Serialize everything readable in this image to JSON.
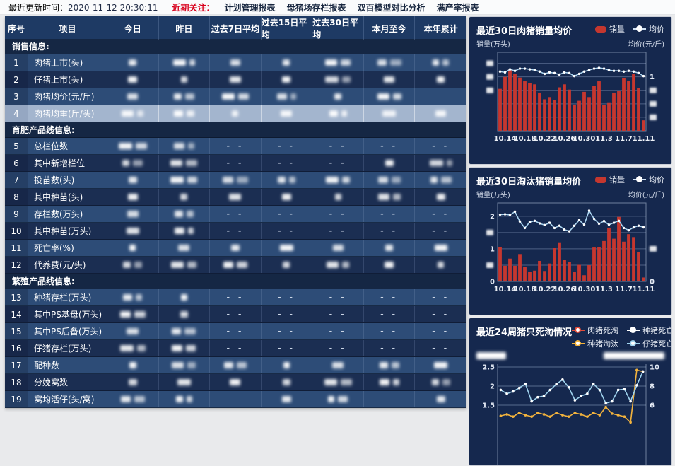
{
  "topbar": {
    "update_label": "最近更新时间：",
    "update_time": "2020-11-12 20:30:11",
    "focus_label": "近期关注：",
    "links": [
      "计划管理报表",
      "母猪场存栏报表",
      "双百模型对比分析",
      "满产率报表"
    ]
  },
  "colors": {
    "accent_red": "#d8001c",
    "bar": "#c5372f",
    "price_line": "#a9d3ef",
    "marker": "#ffffff",
    "panel_bg": "#15284e",
    "header_bg": "#1e3a64",
    "row_odd": "#2d4c77",
    "row_even": "#1b2e52",
    "row_selected": "#a3b5ce",
    "series_yellow": "#f2b33d",
    "series_blue": "#9fd3ee",
    "series_red": "#e04b3a",
    "series_white": "#ffffff"
  },
  "table": {
    "headers": [
      "序号",
      "项目",
      "今日",
      "昨日",
      "过去7日平均",
      "过去15日平均",
      "过去30日平均",
      "本月至今",
      "本年累计"
    ],
    "selected_row_no": "4",
    "sections": [
      {
        "title": "销售信息:",
        "rows": [
          {
            "no": "1",
            "name": "肉猪上市(头)",
            "cells": [
              "b",
              "bb",
              "b",
              "b",
              "bb",
              "bb",
              "bb"
            ]
          },
          {
            "no": "2",
            "name": "仔猪上市(头)",
            "cells": [
              "b",
              "b",
              "b",
              "b",
              "bb",
              "b",
              "b"
            ]
          },
          {
            "no": "3",
            "name": "肉猪均价(元/斤)",
            "cells": [
              "b",
              "bb",
              "bb",
              "bb",
              "b",
              "bb",
              ""
            ]
          },
          {
            "no": "4",
            "name": "肉猪均重(斤/头)",
            "cells": [
              "bb",
              "bb",
              "b",
              "b",
              "bb",
              "b",
              "b"
            ]
          }
        ]
      },
      {
        "title": "育肥产品线信息:",
        "rows": [
          {
            "no": "5",
            "name": "总栏位数",
            "cells": [
              "bb",
              "bb",
              "--",
              "--",
              "--",
              "--",
              "--"
            ]
          },
          {
            "no": "6",
            "name": "其中新增栏位",
            "cells": [
              "bb",
              "bb",
              "--",
              "--",
              "--",
              "b",
              "bb"
            ]
          },
          {
            "no": "7",
            "name": "投苗数(头)",
            "cells": [
              "b",
              "bb",
              "bb",
              "bb",
              "bb",
              "bb",
              "bb"
            ]
          },
          {
            "no": "8",
            "name": "其中种苗(头)",
            "cells": [
              "b",
              "b",
              "b",
              "b",
              "b",
              "bb",
              "b"
            ]
          },
          {
            "no": "9",
            "name": "存栏数(万头)",
            "cells": [
              "b",
              "bb",
              "--",
              "--",
              "--",
              "--",
              "--"
            ]
          },
          {
            "no": "10",
            "name": "其中种苗(万头)",
            "cells": [
              "b",
              "bb",
              "--",
              "--",
              "--",
              "--",
              "--"
            ]
          },
          {
            "no": "11",
            "name": "死亡率(%)",
            "cells": [
              "b",
              "b",
              "b",
              "b",
              "b",
              "b",
              "b"
            ]
          },
          {
            "no": "12",
            "name": "代养费(元/头)",
            "cells": [
              "bb",
              "bb",
              "bb",
              "b",
              "bb",
              "b",
              "b"
            ]
          }
        ]
      },
      {
        "title": "繁殖产品线信息:",
        "rows": [
          {
            "no": "13",
            "name": "种猪存栏(万头)",
            "cells": [
              "bb",
              "b",
              "--",
              "--",
              "--",
              "--",
              "--"
            ]
          },
          {
            "no": "14",
            "name": "其中PS基母(万头)",
            "cells": [
              "bb",
              "b",
              "--",
              "--",
              "--",
              "--",
              "--"
            ]
          },
          {
            "no": "15",
            "name": "其中PS后备(万头)",
            "cells": [
              "b",
              "bb",
              "--",
              "--",
              "--",
              "--",
              "--"
            ]
          },
          {
            "no": "16",
            "name": "仔猪存栏(万头)",
            "cells": [
              "bb",
              "bb",
              "--",
              "--",
              "--",
              "--",
              "--"
            ]
          },
          {
            "no": "17",
            "name": "配种数",
            "cells": [
              "b",
              "bb",
              "bb",
              "b",
              "b",
              "bb",
              "b"
            ]
          },
          {
            "no": "18",
            "name": "分娩窝数",
            "cells": [
              "b",
              "b",
              "b",
              "b",
              "bb",
              "bb",
              "bb"
            ]
          },
          {
            "no": "19",
            "name": "窝均活仔(头/窝)",
            "cells": [
              "bb",
              "bb",
              "",
              "b",
              "bb",
              "",
              "b"
            ]
          }
        ]
      }
    ]
  },
  "chart_data": [
    {
      "key": "pork-sales-price-30d",
      "type": "bar+line",
      "title": "最近30日肉猪销量均价",
      "legend": [
        {
          "label": "销量",
          "type": "bar"
        },
        {
          "label": "均价",
          "type": "line"
        }
      ],
      "y_left_label": "销量(万头)",
      "y_right_label": "均价(元/斤)",
      "x_tick_labels": [
        "10.14",
        "10.18",
        "10.22",
        "10.26",
        "10.30",
        "11.3",
        "11.7",
        "11.11"
      ],
      "ylim": [
        0,
        1
      ],
      "grid": [
        0.18,
        0.36,
        0.54,
        0.72,
        0.9
      ],
      "left_ticks": [
        {
          "v": 0.9,
          "t": null
        },
        {
          "v": 0.72,
          "t": null
        },
        {
          "v": 0.54,
          "t": null
        }
      ],
      "right_ticks": [
        {
          "v": 0.72,
          "t": "1"
        },
        {
          "v": 0.54,
          "t": null
        },
        {
          "v": 0.36,
          "t": null
        },
        {
          "v": 0.18,
          "t": null
        }
      ],
      "axis_values_redacted": true,
      "bars": [
        0.56,
        0.72,
        0.82,
        0.76,
        0.71,
        0.66,
        0.64,
        0.62,
        0.51,
        0.42,
        0.45,
        0.41,
        0.58,
        0.62,
        0.55,
        0.35,
        0.4,
        0.52,
        0.45,
        0.6,
        0.66,
        0.34,
        0.38,
        0.51,
        0.53,
        0.7,
        0.67,
        0.76,
        0.57,
        0.14
      ],
      "line": [
        0.79,
        0.78,
        0.82,
        0.8,
        0.83,
        0.83,
        0.82,
        0.81,
        0.79,
        0.76,
        0.78,
        0.77,
        0.75,
        0.78,
        0.77,
        0.73,
        0.76,
        0.79,
        0.81,
        0.83,
        0.84,
        0.83,
        0.81,
        0.8,
        0.8,
        0.79,
        0.8,
        0.79,
        0.77,
        0.73
      ]
    },
    {
      "key": "cull-pig-sales-price-30d",
      "type": "bar+line",
      "title": "最近30日淘汰猪销量均价",
      "legend": [
        {
          "label": "销量",
          "type": "bar"
        },
        {
          "label": "均价",
          "type": "line"
        }
      ],
      "y_left_label": "销量(万头)",
      "y_right_label": "均价(元/斤)",
      "x_tick_labels": [
        "10.14",
        "10.18",
        "10.22",
        "10.26",
        "10.30",
        "11.3",
        "11.7",
        "11.11"
      ],
      "ylim": [
        0,
        2.3
      ],
      "grid": [
        0.5,
        1,
        1.5,
        2
      ],
      "left_ticks": [
        {
          "v": 2,
          "t": "2"
        },
        {
          "v": 1.5,
          "t": null
        },
        {
          "v": 1,
          "t": "1"
        },
        {
          "v": 0.5,
          "t": null
        },
        {
          "v": 0,
          "t": "0"
        }
      ],
      "right_ticks": [
        {
          "v": 1,
          "t": null
        },
        {
          "v": 0,
          "t": "0"
        }
      ],
      "bars": [
        1.05,
        0.48,
        0.7,
        0.48,
        0.84,
        0.44,
        0.3,
        0.33,
        0.63,
        0.32,
        0.55,
        1.02,
        1.2,
        0.67,
        0.6,
        0.3,
        0.51,
        0.19,
        0.5,
        1.04,
        1.06,
        1.24,
        1.65,
        1.31,
        1.98,
        1.22,
        1.45,
        1.36,
        0.91,
        0.12
      ],
      "line": [
        2.05,
        2.06,
        2.04,
        2.14,
        1.84,
        1.64,
        1.82,
        1.86,
        1.78,
        1.73,
        1.8,
        1.64,
        1.71,
        1.59,
        1.54,
        1.71,
        1.88,
        1.74,
        2.17,
        1.92,
        1.77,
        1.85,
        1.74,
        1.8,
        1.86,
        1.64,
        1.57,
        1.66,
        1.71,
        1.66
      ]
    },
    {
      "key": "death-cull-24w",
      "type": "line",
      "title": "最近24周猪只死淘情况",
      "legend": [
        {
          "label": "肉猪死淘",
          "color": "#e04b3a"
        },
        {
          "label": "种猪死亡",
          "color": "#ffffff"
        },
        {
          "label": "种猪淘汰",
          "color": "#f2b33d"
        },
        {
          "label": "仔猪死亡",
          "color": "#9fd3ee"
        }
      ],
      "y_left_label_redacted": true,
      "y_right_label_redacted": true,
      "grid": [
        2.5,
        2,
        1.5
      ],
      "y_left_ticks": [
        "2.5",
        "2",
        "1.5"
      ],
      "y_right_ticks": [
        "10",
        "8",
        "6"
      ],
      "series": [
        {
          "name": "种猪淘汰",
          "color": "#f2b33d",
          "values": [
            1.22,
            1.26,
            1.2,
            1.3,
            1.24,
            1.2,
            1.3,
            1.26,
            1.2,
            1.3,
            1.24,
            1.2,
            1.3,
            1.26,
            1.2,
            1.3,
            1.24,
            1.45,
            1.28,
            1.24,
            1.2,
            1.05,
            2.42,
            2.38
          ]
        },
        {
          "name": "仔猪死亡",
          "color": "#9fd3ee",
          "values": [
            1.9,
            1.8,
            1.86,
            1.95,
            2.06,
            1.6,
            1.71,
            1.74,
            1.9,
            2.05,
            2.17,
            1.97,
            1.63,
            1.74,
            1.8,
            2.06,
            1.9,
            1.55,
            1.6,
            1.9,
            1.92,
            1.6,
            2.02,
            2.38
          ]
        },
        {
          "name": "肉猪死淘",
          "color": "#e04b3a",
          "values": []
        },
        {
          "name": "种猪死亡",
          "color": "#ffffff",
          "values": []
        }
      ]
    }
  ]
}
